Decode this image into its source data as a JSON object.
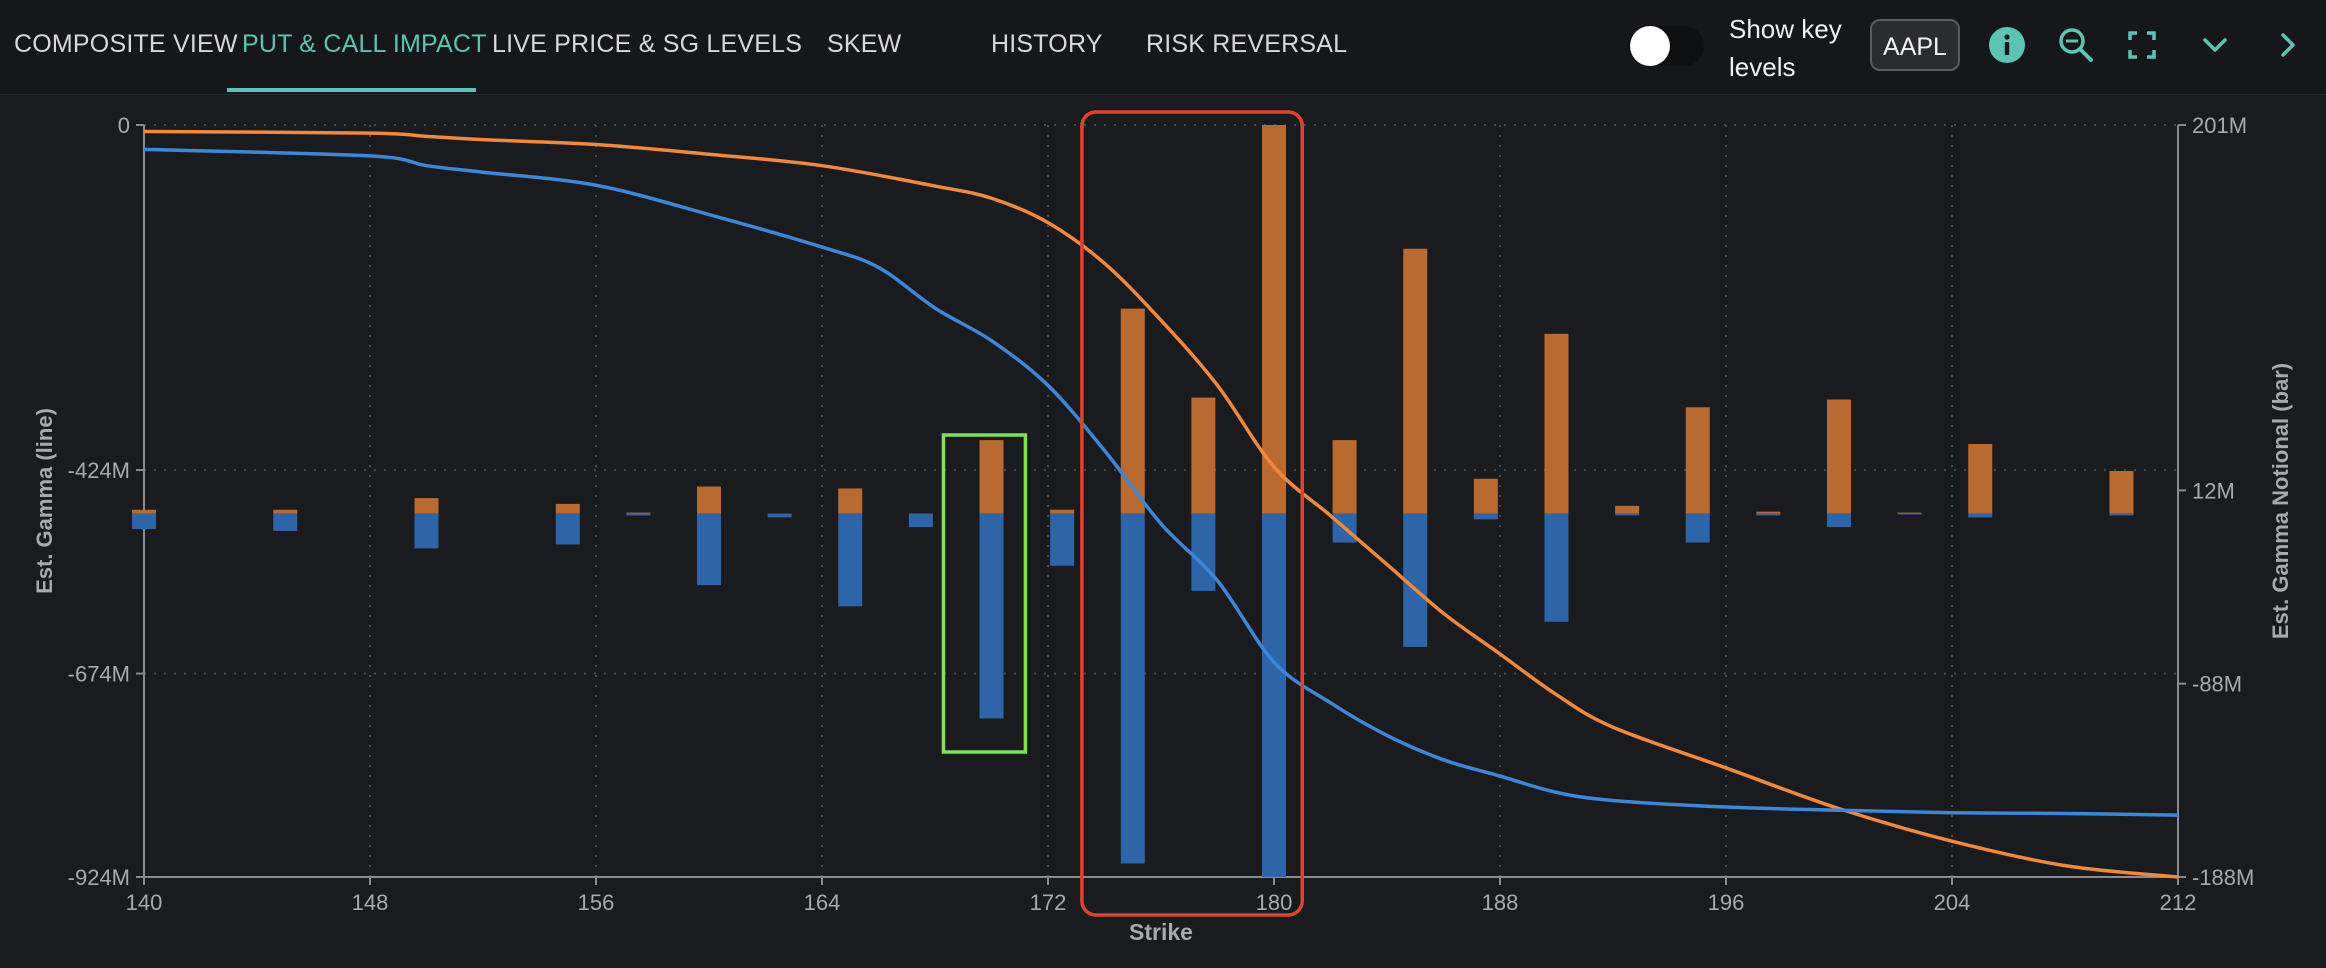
{
  "nav": {
    "tabs": [
      {
        "label": "COMPOSITE VIEW",
        "active": false
      },
      {
        "label": "PUT & CALL IMPACT",
        "active": true
      },
      {
        "label": "LIVE PRICE & SG LEVELS",
        "active": false
      },
      {
        "label": "SKEW",
        "active": false
      },
      {
        "label": "HISTORY",
        "active": false
      },
      {
        "label": "RISK REVERSAL",
        "active": false
      }
    ],
    "toggle_label": "Show key levels",
    "ticker": "AAPL",
    "icons": [
      "info-icon",
      "zoom-out-icon",
      "fullscreen-icon",
      "chevron-down-icon",
      "chevron-right-icon"
    ]
  },
  "colors": {
    "accent": "#5cc4b2",
    "call_bar": "#b96a30",
    "put_bar": "#2e64a8",
    "line_orange": "#f0883e",
    "line_blue": "#3d86d8",
    "highlight_red": "#e0442e",
    "highlight_green": "#7fe05a"
  },
  "chart_data": {
    "type": "bar",
    "xlabel": "Strike",
    "ylabel_left": "Est. Gamma (line)",
    "ylabel_right": "Est. Gamma Notional (bar)",
    "x_ticks": [
      "140",
      "148",
      "156",
      "164",
      "172",
      "180",
      "188",
      "196",
      "204",
      "212"
    ],
    "xlim": [
      140,
      212
    ],
    "y_left_ticks": [
      "0",
      "-424M",
      "-674M",
      "-924M"
    ],
    "y_left_tick_values": [
      0,
      -424,
      -674,
      -924
    ],
    "y_left_range": [
      -924,
      0
    ],
    "y_right_ticks": [
      "201M",
      "12M",
      "-88M",
      "-188M"
    ],
    "y_right_tick_values": [
      201,
      12,
      -88,
      -188
    ],
    "y_right_range": [
      -188,
      201
    ],
    "y_units": "M",
    "grid": true,
    "bars": {
      "strikes": [
        140,
        145,
        150,
        155,
        157.5,
        160,
        162.5,
        165,
        167.5,
        170,
        172.5,
        175,
        177.5,
        180,
        182.5,
        185,
        187.5,
        190,
        192.5,
        195,
        197.5,
        200,
        202.5,
        205,
        210
      ],
      "call": [
        2,
        2,
        8,
        5,
        0.5,
        14,
        0,
        13,
        0,
        38,
        2,
        106,
        60,
        201,
        38,
        137,
        18,
        93,
        4,
        55,
        1,
        59,
        0.5,
        36,
        22
      ],
      "put": [
        -8,
        -9,
        -18,
        -16,
        -1,
        -37,
        -2,
        -48,
        -7,
        -106,
        -27,
        -181,
        -40,
        -188,
        -15,
        -69,
        -3,
        -56,
        -1,
        -15,
        -1,
        -7,
        -0.5,
        -2,
        -1
      ]
    },
    "series": [
      {
        "x": [
          140,
          148,
          150,
          152,
          156,
          160,
          164,
          168,
          170,
          172,
          174,
          176,
          178,
          180,
          182,
          184,
          186,
          188,
          190,
          192,
          196,
          200,
          204,
          208,
          212
        ],
        "values": [
          -8,
          -10,
          -14,
          -18,
          -24,
          -36,
          -50,
          -75,
          -90,
          -120,
          -170,
          -240,
          -320,
          -420,
          -480,
          -540,
          -600,
          -650,
          -700,
          -740,
          -790,
          -840,
          -880,
          -910,
          -924
        ]
      },
      {
        "x": [
          140,
          148,
          150,
          152,
          156,
          160,
          164,
          166,
          168,
          170,
          172,
          174,
          176,
          178,
          180,
          182,
          184,
          186,
          188,
          190,
          192,
          196,
          200,
          204,
          208,
          212
        ],
        "values": [
          -30,
          -38,
          -50,
          -58,
          -74,
          -110,
          -150,
          -175,
          -225,
          -265,
          -320,
          -400,
          -490,
          -560,
          -660,
          -710,
          -750,
          -780,
          -800,
          -820,
          -830,
          -838,
          -842,
          -845,
          -846,
          -848
        ]
      }
    ],
    "annotations": [
      {
        "type": "box",
        "color": "red",
        "x_range": [
          173.2,
          181
        ]
      },
      {
        "type": "box",
        "color": "green",
        "x_range": [
          168.3,
          171.2
        ]
      }
    ]
  }
}
